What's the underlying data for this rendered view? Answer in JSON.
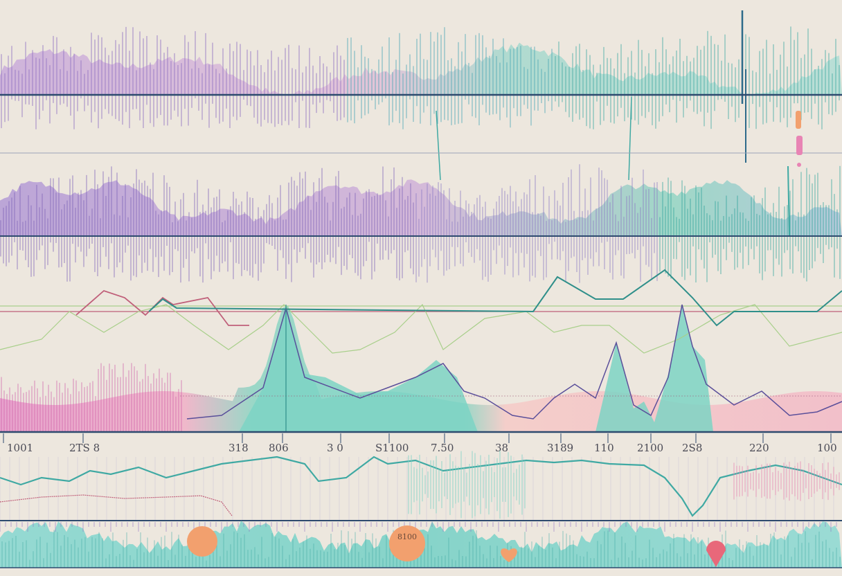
{
  "palette": {
    "background": "#ede7de",
    "teal": "#3fa9a3",
    "teal_light": "#7dd3c4",
    "purple": "#8e6fc2",
    "pink": "#e58bb4",
    "pink_light": "#f4b6c6",
    "red_line": "#c0607a",
    "green_line": "#a8cf8a",
    "navy": "#2d4a6e",
    "orange": "#f2a06e"
  },
  "axis": {
    "tick_labels": [
      "1001",
      "2TS 8",
      "318",
      "806",
      "3 0",
      "S1100",
      "7.50",
      "38",
      "3189",
      "110",
      "2100",
      "2S8",
      "220",
      "100"
    ]
  },
  "markers": [
    {
      "label": "",
      "color": "#f2a06e"
    },
    {
      "label": "8100",
      "color": "#f2a06e"
    },
    {
      "label": "",
      "color": "#f2a06e"
    },
    {
      "label": "",
      "color": "#e8687a"
    }
  ],
  "icons": [
    "exclamation-icon"
  ]
}
